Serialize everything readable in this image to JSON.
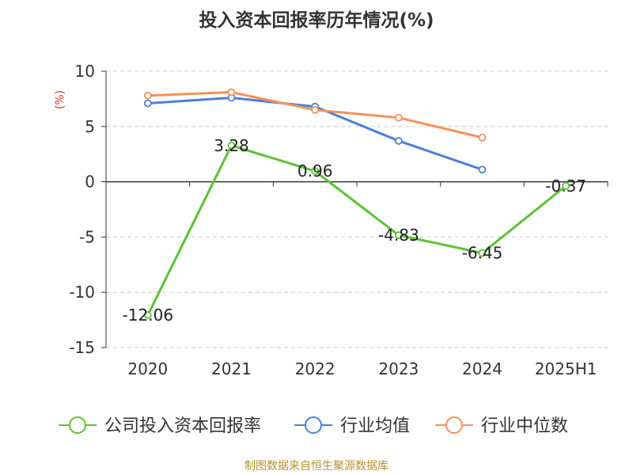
{
  "title": "投入资本回报率历年情况(%)",
  "footer": "制图数据来自恒生聚源数据库",
  "chart_data": {
    "type": "line",
    "title": "投入资本回报率历年情况(%)",
    "ylabel": "(%)",
    "categories": [
      "2020",
      "2021",
      "2022",
      "2023",
      "2024",
      "2025H1"
    ],
    "ylim": [
      -15,
      10
    ],
    "yticks": [
      10,
      5,
      0,
      -5,
      -10,
      -15
    ],
    "grid": "horizontal-dashed",
    "legend_position": "bottom",
    "series": [
      {
        "name": "公司投入资本回报率",
        "color": "#5cc236",
        "values": [
          -12.06,
          3.28,
          0.96,
          -4.83,
          -6.45,
          -0.37
        ],
        "labels": [
          "-12.06",
          "3.28",
          "0.96",
          "-4.83",
          "-6.45",
          "-0.37"
        ]
      },
      {
        "name": "行业均值",
        "color": "#4a7fdc",
        "values": [
          7.1,
          7.6,
          6.8,
          3.7,
          1.1,
          null
        ]
      },
      {
        "name": "行业中位数",
        "color": "#f5915a",
        "values": [
          7.8,
          8.1,
          6.5,
          5.8,
          4.0,
          null
        ]
      }
    ]
  }
}
